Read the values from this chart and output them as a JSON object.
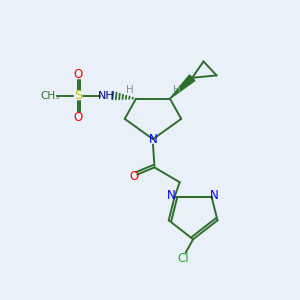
{
  "bg_color": "#eaf0f7",
  "lc": "#2d6e2d",
  "lw": 1.4,
  "atom_colors": {
    "S": "#c8c800",
    "O": "#ff0000",
    "N": "#0000ee",
    "NH": "#00008b",
    "Cl": "#22aa22",
    "H": "#7a9a9a",
    "C": "#2d6e2d"
  }
}
